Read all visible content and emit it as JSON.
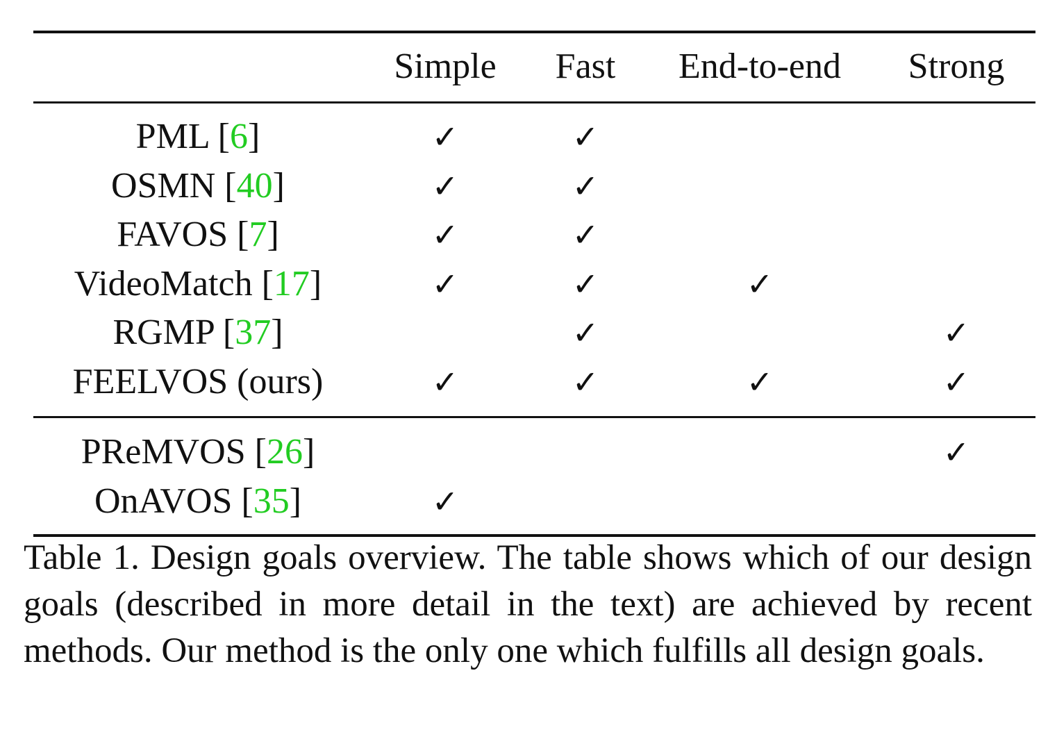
{
  "table": {
    "columns": [
      "Simple",
      "Fast",
      "End-to-end",
      "Strong"
    ],
    "groups": [
      {
        "rows": [
          {
            "method": "PML",
            "cite": "6",
            "checks": [
              true,
              true,
              false,
              false
            ]
          },
          {
            "method": "OSMN",
            "cite": "40",
            "checks": [
              true,
              true,
              false,
              false
            ]
          },
          {
            "method": "FAVOS",
            "cite": "7",
            "checks": [
              true,
              true,
              false,
              false
            ]
          },
          {
            "method": "VideoMatch",
            "cite": "17",
            "checks": [
              true,
              true,
              true,
              false
            ]
          },
          {
            "method": "RGMP",
            "cite": "37",
            "checks": [
              false,
              true,
              false,
              true
            ]
          },
          {
            "method": "FEELVOS (ours)",
            "cite": "",
            "checks": [
              true,
              true,
              true,
              true
            ]
          }
        ]
      },
      {
        "rows": [
          {
            "method": "PReMVOS",
            "cite": "26",
            "checks": [
              false,
              false,
              false,
              true
            ]
          },
          {
            "method": "OnAVOS",
            "cite": "35",
            "checks": [
              true,
              false,
              false,
              false
            ]
          }
        ]
      }
    ],
    "check_glyph": "✓",
    "cite_color": "#22cc22"
  },
  "caption": {
    "text": "Table 1. Design goals overview.  The table shows which of our design goals (described in more detail in the text) are achieved by recent methods. Our method is the only one which fulfills all design goals."
  }
}
